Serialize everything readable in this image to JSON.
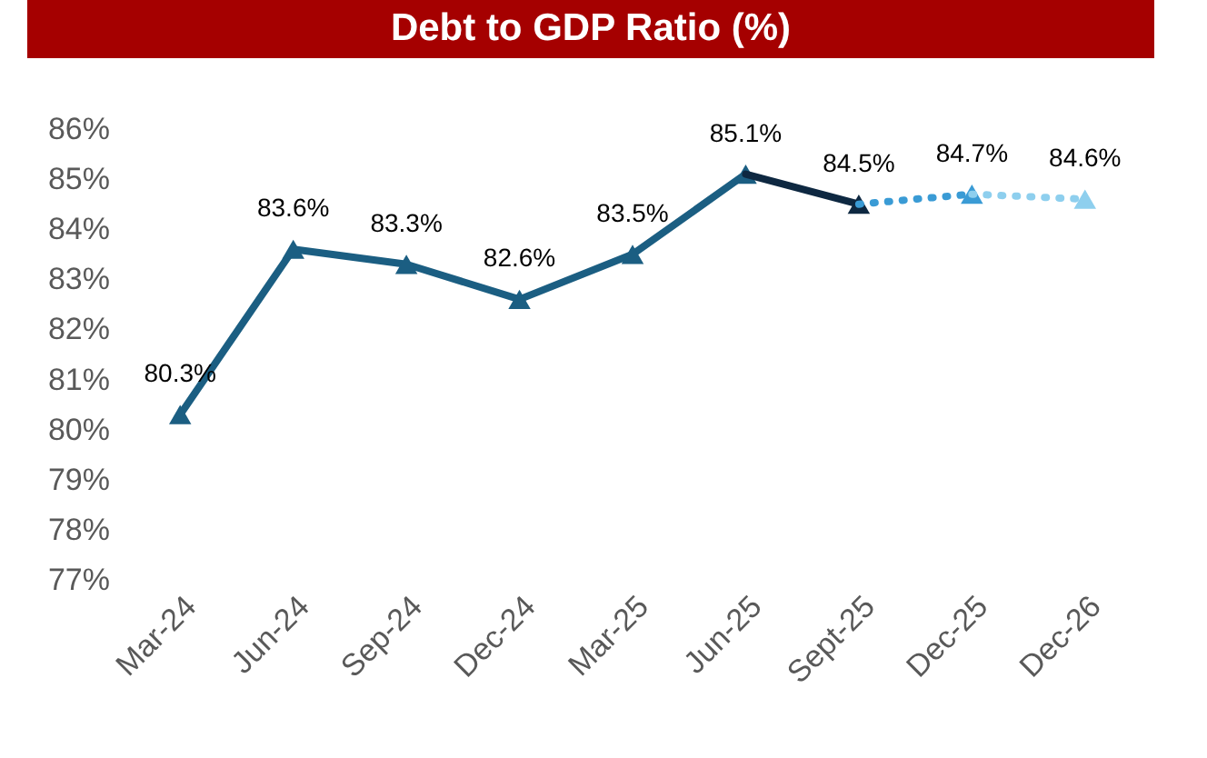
{
  "chart_data": {
    "type": "line",
    "title": "Debt to GDP Ratio (%)",
    "categories": [
      "Mar-24",
      "Jun-24",
      "Sep-24",
      "Dec-24",
      "Mar-25",
      "Jun-25",
      "Sept-25",
      "Dec-25",
      "Dec-26"
    ],
    "series": [
      {
        "color": "#1b5e82",
        "line_style": "solid",
        "values": [
          80.3,
          83.6,
          83.3,
          82.6,
          83.5,
          85.1,
          null,
          null,
          null
        ],
        "value_labels": [
          "80.3%",
          "83.6%",
          "83.3%",
          "82.6%",
          "83.5%",
          "85.1%",
          null,
          null,
          null
        ]
      },
      {
        "color": "#0e2841",
        "line_style": "solid",
        "values": [
          null,
          null,
          null,
          null,
          null,
          85.1,
          84.5,
          null,
          null
        ],
        "value_labels": [
          null,
          null,
          null,
          null,
          null,
          null,
          "84.5%",
          null,
          null
        ]
      },
      {
        "color": "#3a9bd5",
        "line_style": "dotted",
        "values": [
          null,
          null,
          null,
          null,
          null,
          null,
          84.5,
          84.7,
          null
        ],
        "value_labels": [
          null,
          null,
          null,
          null,
          null,
          null,
          null,
          "84.7%",
          null
        ]
      },
      {
        "color": "#8ecfee",
        "line_style": "dotted",
        "values": [
          null,
          null,
          null,
          null,
          null,
          null,
          null,
          84.7,
          84.6
        ],
        "value_labels": [
          null,
          null,
          null,
          null,
          null,
          null,
          null,
          null,
          "84.6%"
        ]
      }
    ],
    "ylim": [
      77,
      86
    ],
    "yticks": [
      {
        "value": 77,
        "label": "77%"
      },
      {
        "value": 78,
        "label": "78%"
      },
      {
        "value": 79,
        "label": "79%"
      },
      {
        "value": 80,
        "label": "80%"
      },
      {
        "value": 81,
        "label": "81%"
      },
      {
        "value": 82,
        "label": "82%"
      },
      {
        "value": 83,
        "label": "83%"
      },
      {
        "value": 84,
        "label": "84%"
      },
      {
        "value": 85,
        "label": "85%"
      },
      {
        "value": 86,
        "label": "86%"
      }
    ],
    "marker": "triangle",
    "grid": false
  }
}
